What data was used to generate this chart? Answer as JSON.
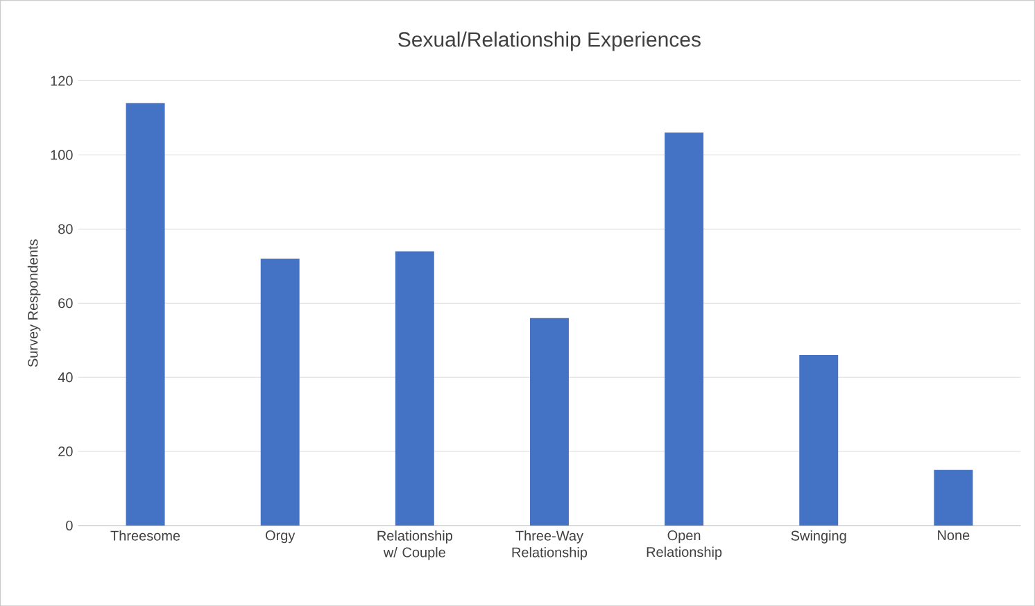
{
  "chart_data": {
    "type": "bar",
    "title": "Sexual/Relationship Experiences",
    "ylabel": "Survey Respondents",
    "categories": [
      "Threesome",
      "Orgy",
      "Relationship w/ Couple",
      "Three-Way Relationship",
      "Open Relationship",
      "Swinging",
      "None"
    ],
    "values": [
      114,
      72,
      74,
      56,
      106,
      46,
      15
    ],
    "color": "#4472c4",
    "ylim": [
      0,
      120
    ],
    "yticks": [
      0,
      20,
      40,
      60,
      80,
      100,
      120
    ],
    "grid": "y"
  }
}
